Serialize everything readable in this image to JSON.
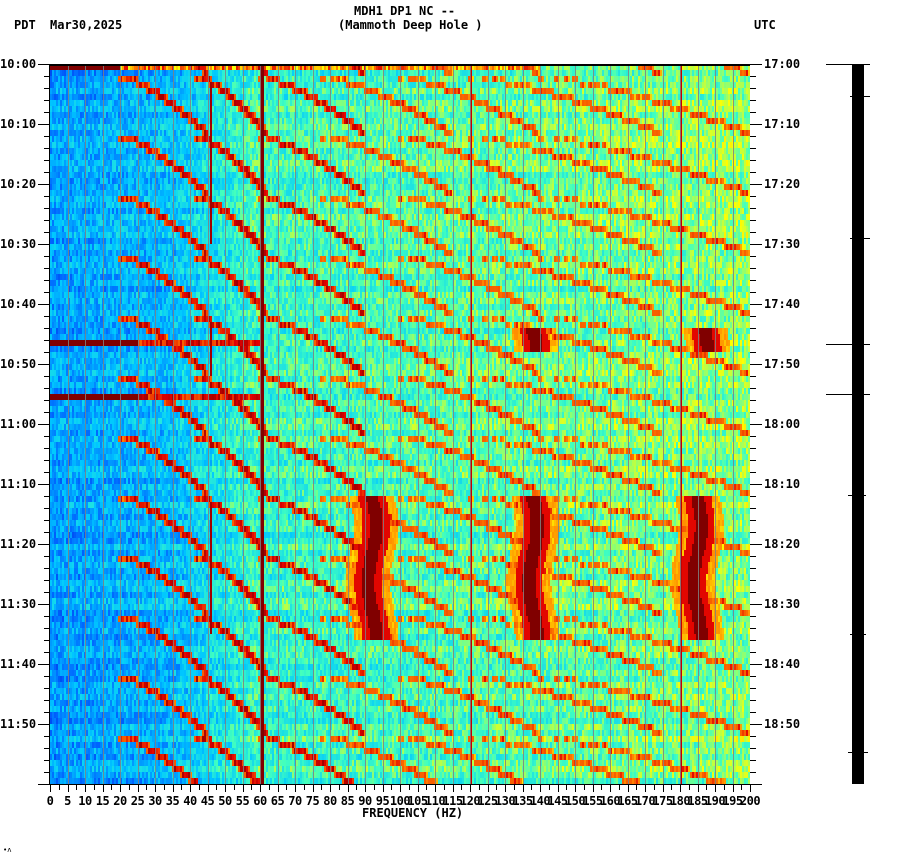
{
  "header": {
    "title_line1": "MDH1 DP1 NC --",
    "title_line2": "(Mammoth Deep Hole )",
    "left_timezone": "PDT",
    "date": "Mar30,2025",
    "right_timezone": "UTC"
  },
  "footnote": "•ʌ",
  "colors": {
    "background": "#ffffff",
    "axis": "#000000",
    "colormap": [
      "#0000c8",
      "#0064ff",
      "#00c8ff",
      "#40ffc0",
      "#ffff00",
      "#ff8000",
      "#e00000",
      "#800000"
    ]
  },
  "chart_data": {
    "type": "heatmap",
    "title": "MDH1 DP1 NC -- (Mammoth Deep Hole )",
    "subtitle": "Mar30,2025",
    "xlabel": "FREQUENCY (HZ)",
    "ylabel_left": "PDT",
    "ylabel_right": "UTC",
    "xlim": [
      0,
      200
    ],
    "x_ticks": [
      "0",
      "5",
      "10",
      "15",
      "20",
      "25",
      "30",
      "35",
      "40",
      "45",
      "50",
      "55",
      "60",
      "65",
      "70",
      "75",
      "80",
      "85",
      "90",
      "95",
      "100",
      "105",
      "110",
      "115",
      "120",
      "125",
      "130",
      "135",
      "140",
      "145",
      "150",
      "155",
      "160",
      "165",
      "170",
      "175",
      "180",
      "185",
      "190",
      "195",
      "200"
    ],
    "y_ticks_left": [
      "10:00",
      "10:10",
      "10:20",
      "10:30",
      "10:40",
      "10:50",
      "11:00",
      "11:10",
      "11:20",
      "11:30",
      "11:40",
      "11:50"
    ],
    "y_ticks_right": [
      "17:00",
      "17:10",
      "17:20",
      "17:30",
      "17:40",
      "17:50",
      "18:00",
      "18:10",
      "18:20",
      "18:30",
      "18:40",
      "18:50"
    ],
    "time_range_minutes": 120,
    "grid": true,
    "features": {
      "persistent_lines_hz": [
        60,
        120,
        180
      ],
      "gliding_arcs_note": "repeating curved harmonic sweeps rising from ~20-45 Hz upward to the right, period ~10 min",
      "broadband_bursts_pdt": [
        "10:46",
        "10:55"
      ],
      "narrowband_bursts": [
        {
          "center_hz": 92,
          "start": "11:12",
          "end": "11:35"
        },
        {
          "center_hz": 138,
          "start": "11:12",
          "end": "11:35"
        },
        {
          "center_hz": 185,
          "start": "11:12",
          "end": "11:35"
        },
        {
          "center_hz": 138,
          "start": "10:44",
          "end": "10:47"
        },
        {
          "center_hz": 187,
          "start": "10:44",
          "end": "10:47"
        }
      ],
      "low_noise_band_hz": [
        0,
        35
      ],
      "high_noise_band_hz": [
        60,
        200
      ]
    }
  }
}
